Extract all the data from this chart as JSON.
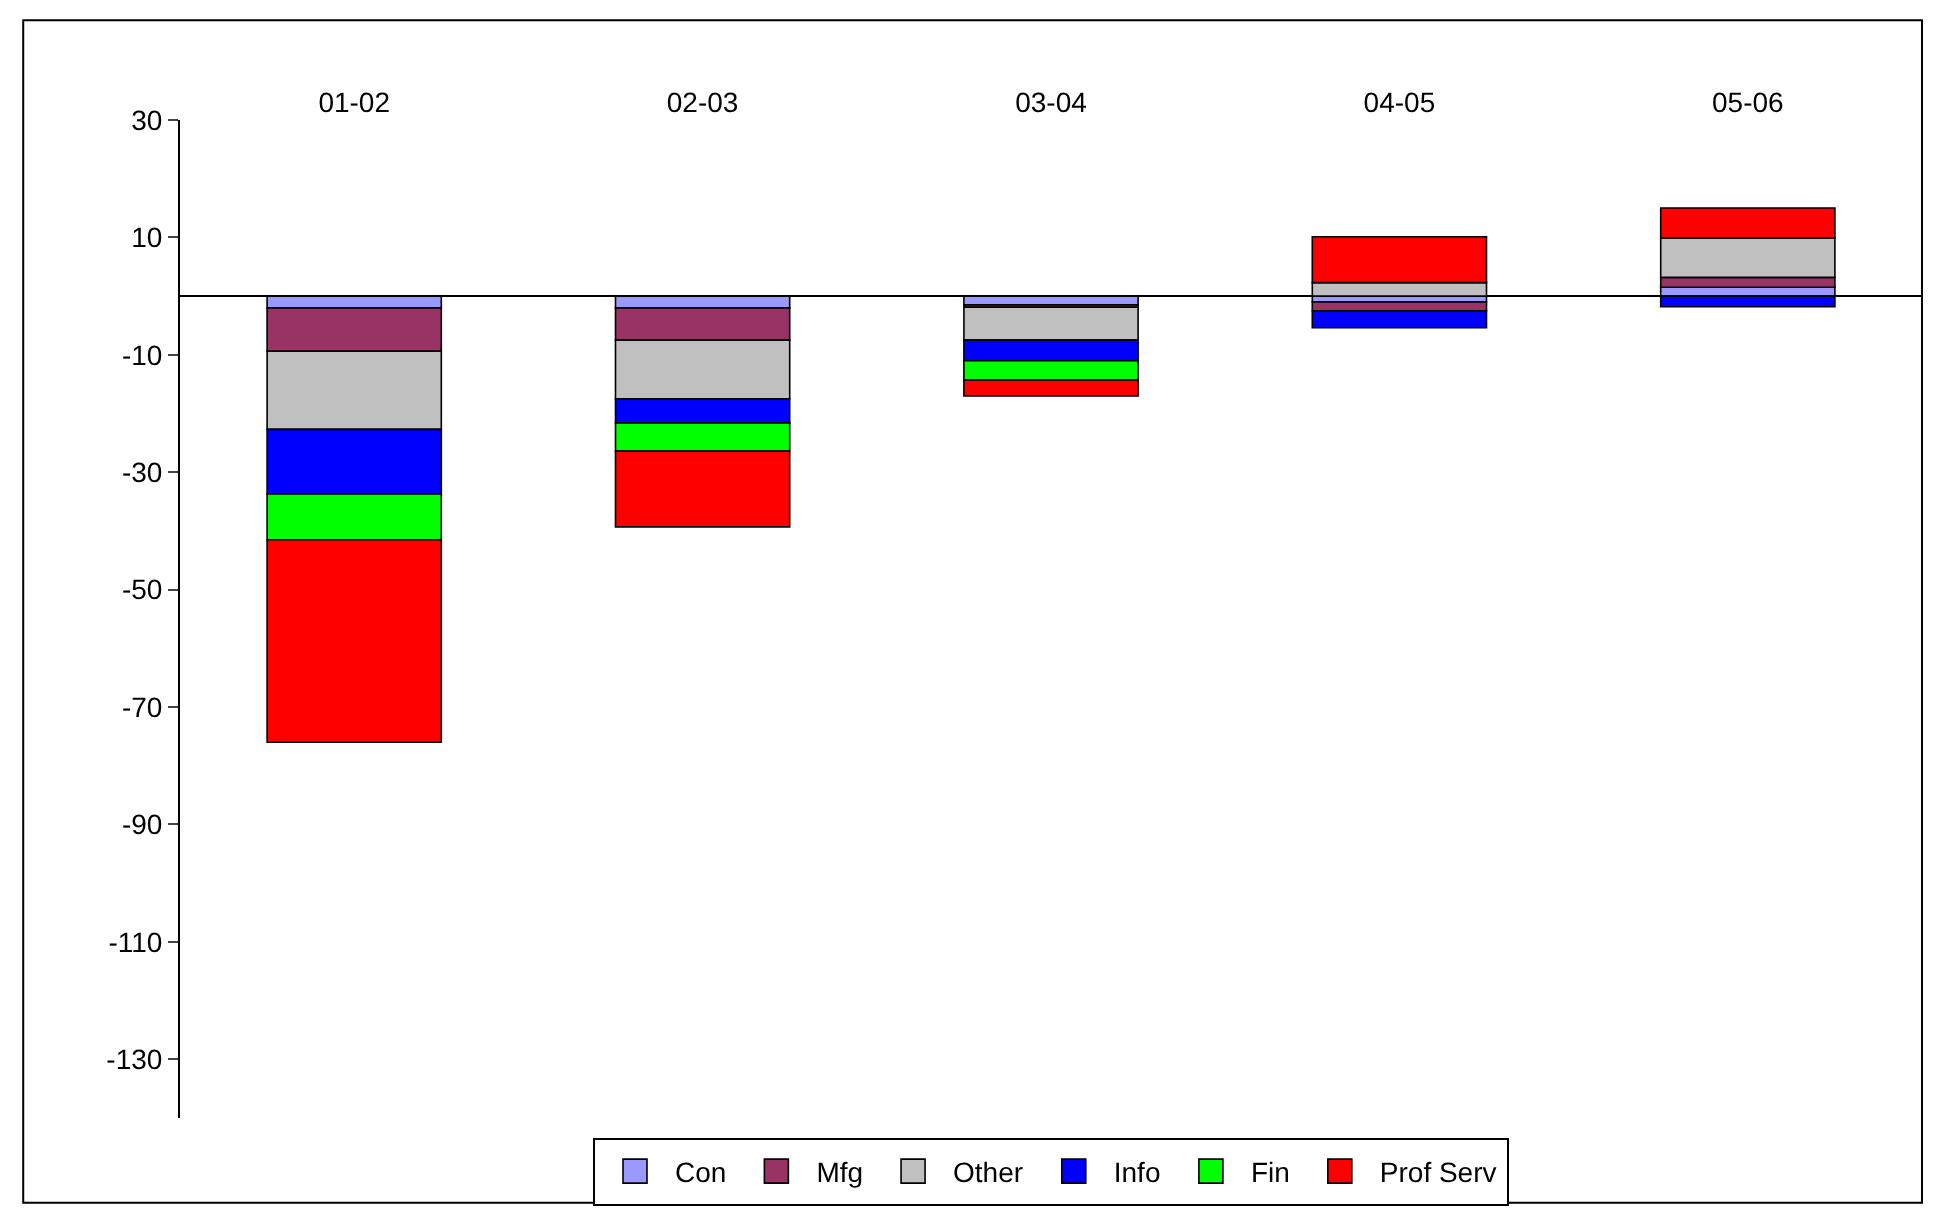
{
  "chart_data": {
    "type": "bar",
    "stacked": true,
    "categories": [
      "01-02",
      "02-03",
      "03-04",
      "04-05",
      "05-06"
    ],
    "series": [
      {
        "name": "Con",
        "color": "#9999ff",
        "values": [
          -2.0,
          -2.0,
          -1.5,
          -1.0,
          1.5
        ]
      },
      {
        "name": "Mfg",
        "color": "#993366",
        "values": [
          -7.4,
          -5.5,
          -0.4,
          -1.5,
          1.7
        ]
      },
      {
        "name": "Other",
        "color": "#c0c0c0",
        "values": [
          -13.3,
          -10.0,
          -5.6,
          2.3,
          6.7
        ]
      },
      {
        "name": "Info",
        "color": "#0000ff",
        "values": [
          -11.0,
          -4.1,
          -3.5,
          -2.9,
          -1.8
        ]
      },
      {
        "name": "Fin",
        "color": "#00ff00",
        "values": [
          -7.8,
          -4.8,
          -3.3,
          null,
          null
        ]
      },
      {
        "name": "Prof Serv",
        "color": "#ff0000",
        "values": [
          -34.5,
          -12.9,
          -2.7,
          7.8,
          5.1
        ]
      }
    ],
    "ylim": [
      -140,
      30
    ],
    "yticks": [
      -130,
      -110,
      -90,
      -70,
      -50,
      -30,
      -10,
      10,
      30
    ],
    "legend": "bottom"
  }
}
